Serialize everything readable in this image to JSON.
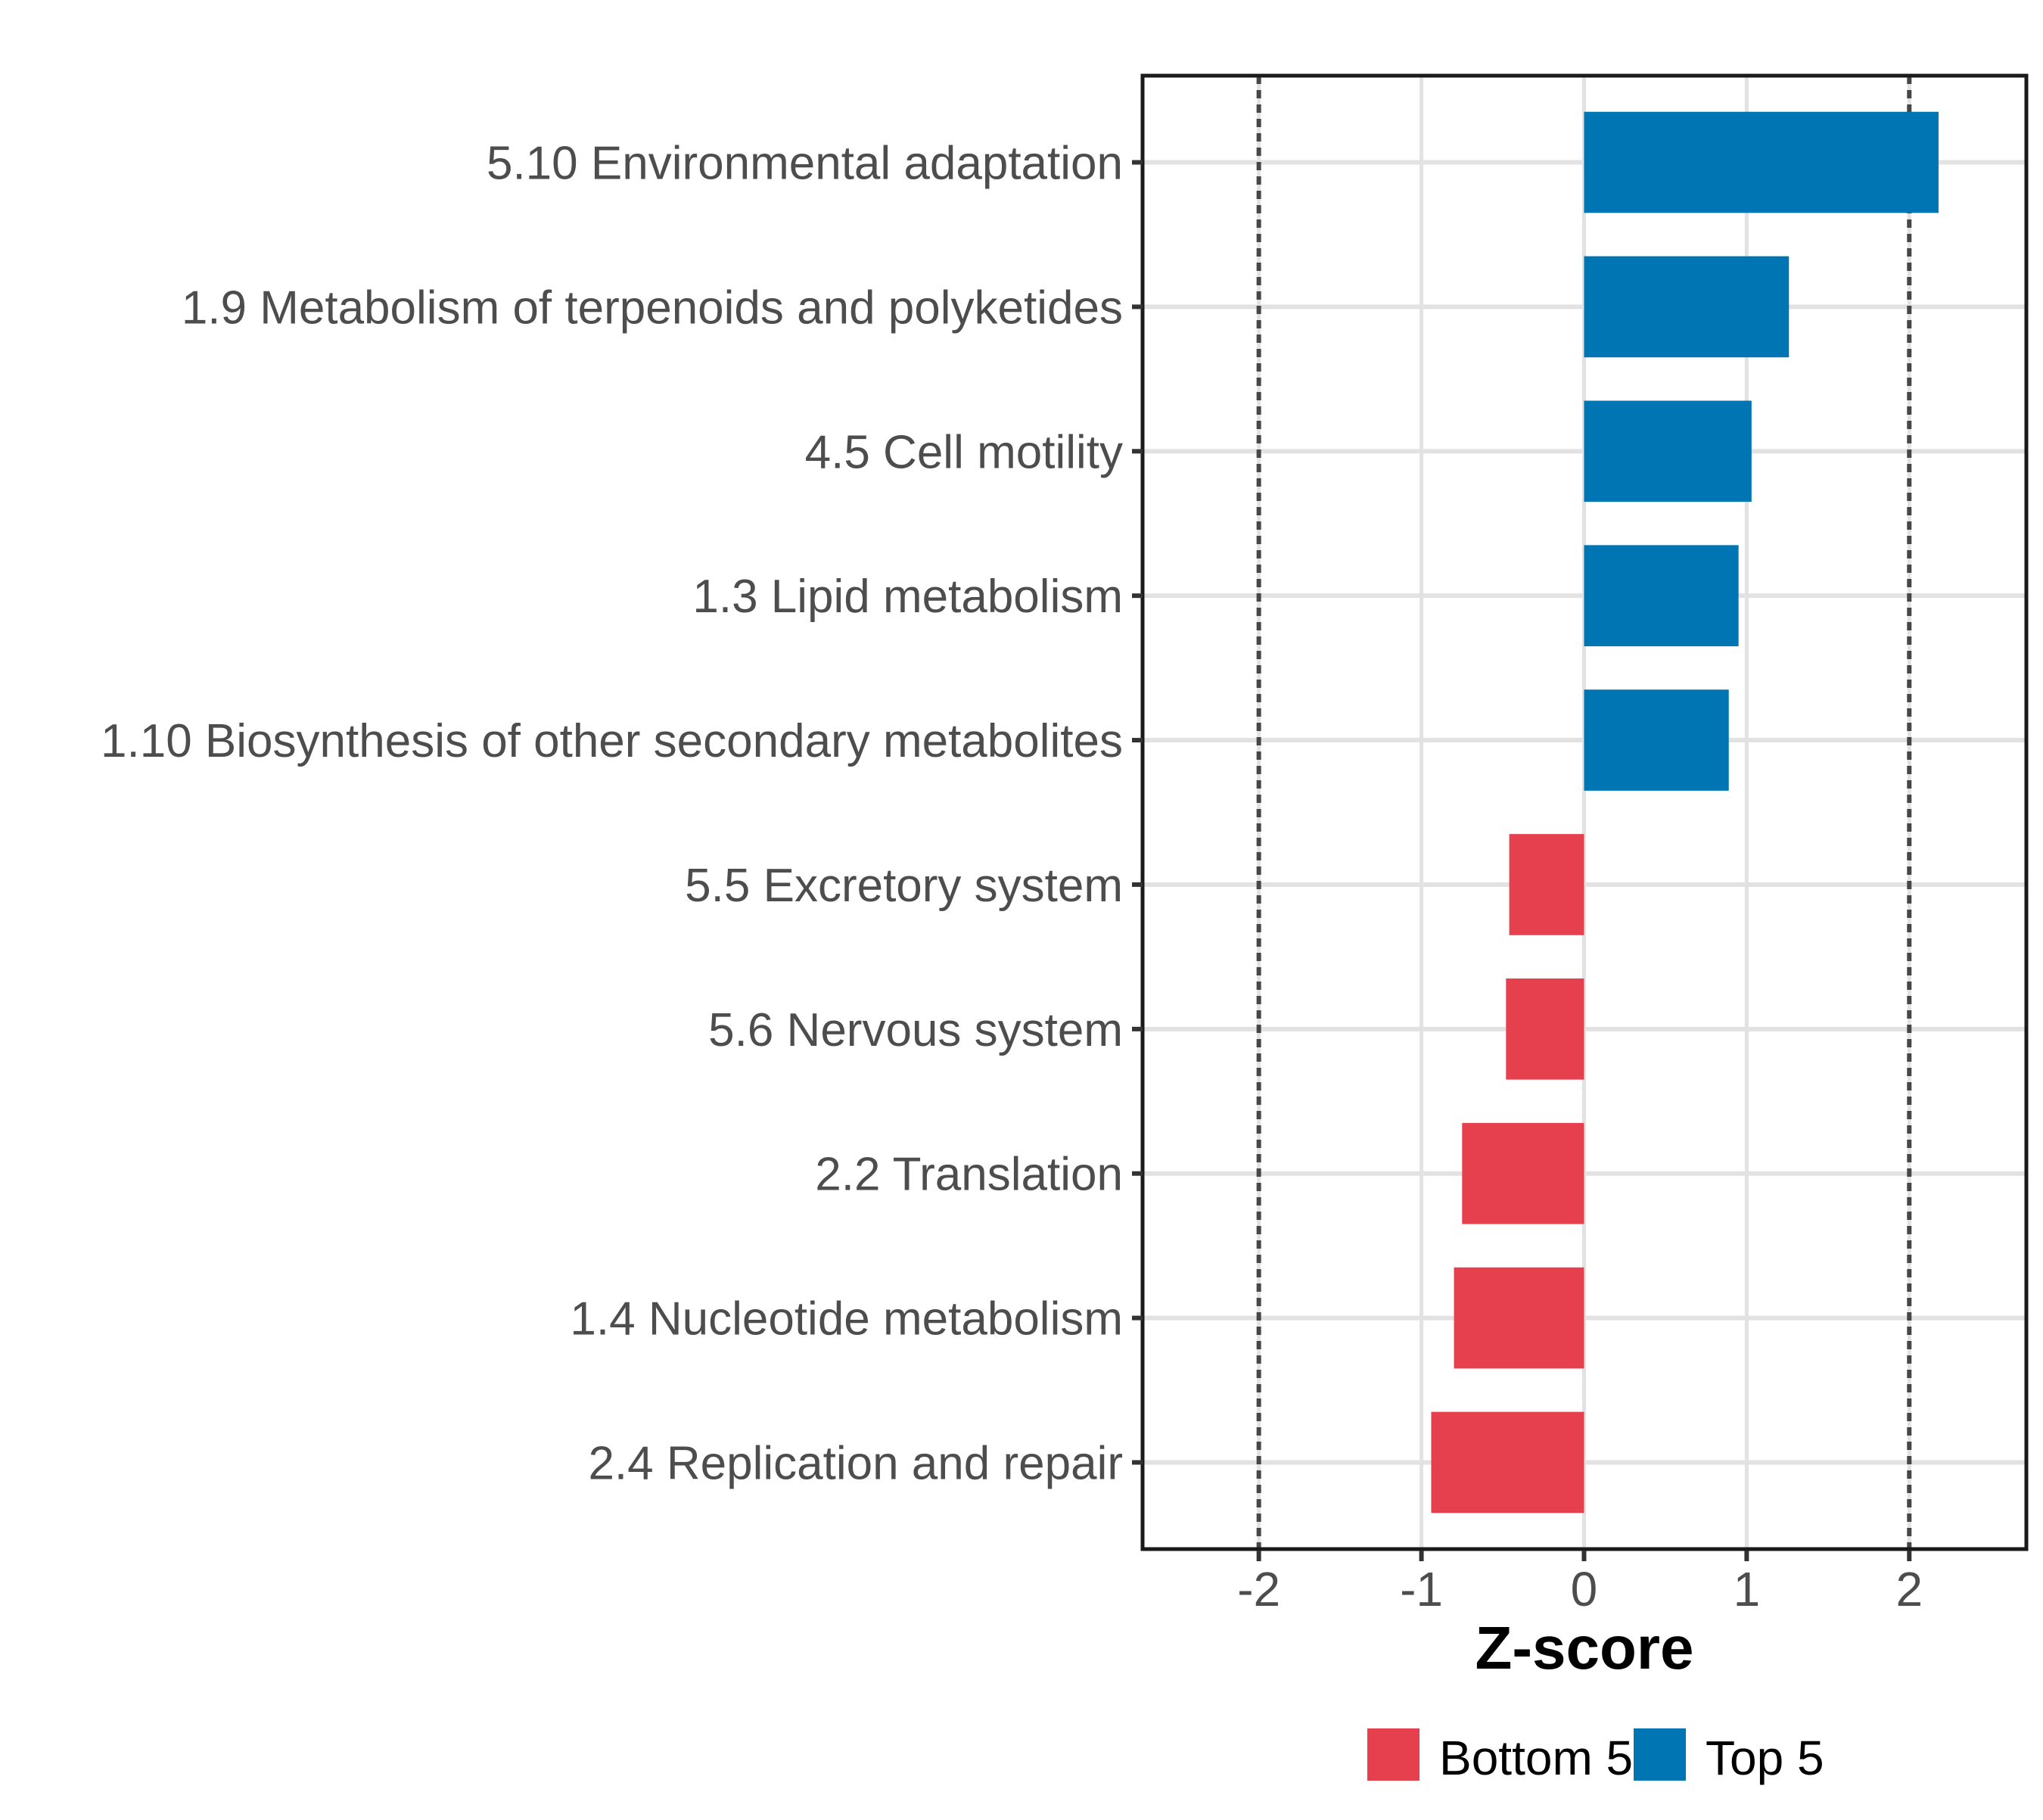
{
  "chart_data": {
    "type": "bar",
    "orientation": "horizontal",
    "title": "",
    "xlabel": "Z-score",
    "ylabel": "",
    "x_ticks": [
      -2,
      -1,
      0,
      1,
      2
    ],
    "x_tick_labels": [
      "-2",
      "-1",
      "0",
      "1",
      "2"
    ],
    "xlim": [
      -2.715,
      2.72
    ],
    "grid": true,
    "minor_grid": false,
    "reference_lines": [
      -2,
      2
    ],
    "legend_position": "bottom",
    "bars": [
      {
        "category": "5.10 Environmental adaptation",
        "value": 2.18,
        "group": "Top 5"
      },
      {
        "category": "1.9 Metabolism of terpenoids and polyketides",
        "value": 1.26,
        "group": "Top 5"
      },
      {
        "category": "4.5 Cell motility",
        "value": 1.03,
        "group": "Top 5"
      },
      {
        "category": "1.3 Lipid metabolism",
        "value": 0.95,
        "group": "Top 5"
      },
      {
        "category": "1.10 Biosynthesis of other secondary metabolites",
        "value": 0.89,
        "group": "Top 5"
      },
      {
        "category": "5.5 Excretory system",
        "value": -0.46,
        "group": "Bottom 5"
      },
      {
        "category": "5.6 Nervous system",
        "value": -0.48,
        "group": "Bottom 5"
      },
      {
        "category": "2.2 Translation",
        "value": -0.75,
        "group": "Bottom 5"
      },
      {
        "category": "1.4 Nucleotide metabolism",
        "value": -0.8,
        "group": "Bottom 5"
      },
      {
        "category": "2.4 Replication and repair",
        "value": -0.94,
        "group": "Bottom 5"
      }
    ],
    "legend": [
      {
        "label": "Bottom 5",
        "color": "#E6404F"
      },
      {
        "label": "Top 5",
        "color": "#0075B4"
      }
    ],
    "colors": {
      "top5": "#0075B4",
      "bottom5": "#E6404F",
      "grid": "#E2E2E2",
      "reference_line": "#474747",
      "axis_text": "#4D4D4D",
      "tick_mark": "#333333",
      "panel_border": "#1A1A1A",
      "background": "#FFFFFF"
    }
  }
}
